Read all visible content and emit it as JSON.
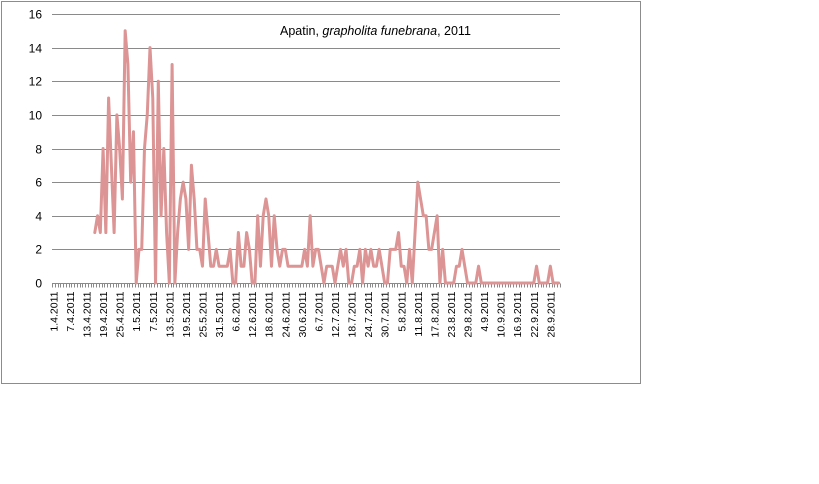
{
  "chart_data": {
    "type": "line",
    "title_prefix": "Apatin, ",
    "title_species": "grapholita funebrana",
    "title_suffix": ", 2011",
    "xlabel": "",
    "ylabel": "",
    "ylim": [
      0,
      16
    ],
    "yticks": [
      0,
      2,
      4,
      6,
      8,
      10,
      12,
      14,
      16
    ],
    "grid": "horizontal",
    "legend": "none",
    "line_color": "#dc9494",
    "tick_labels": [
      "1.4.2011",
      "7.4.2011",
      "13.4.2011",
      "19.4.2011",
      "25.4.2011",
      "1.5.2011",
      "7.5.2011",
      "13.5.2011",
      "19.5.2011",
      "25.5.2011",
      "31.5.2011",
      "6.6.2011",
      "12.6.2011",
      "18.6.2011",
      "24.6.2011",
      "30.6.2011",
      "6.7.2011",
      "12.7.2011",
      "18.7.2011",
      "24.7.2011",
      "30.7.2011",
      "5.8.2011",
      "11.8.2011",
      "17.8.2011",
      "23.8.2011",
      "29.8.2011",
      "4.9.2011",
      "10.9.2011",
      "16.9.2011",
      "22.9.2011",
      "28.9.2011"
    ],
    "days_count": 184,
    "series": [
      {
        "x": [
          15,
          16,
          17,
          18,
          19,
          20,
          21,
          22,
          23,
          24,
          25,
          26,
          27,
          28,
          29,
          30,
          31,
          32,
          33,
          34,
          35,
          36,
          37,
          38,
          39,
          40,
          41,
          42,
          43,
          44,
          45,
          46,
          47,
          48,
          49,
          50,
          51,
          52,
          53,
          54,
          55,
          56,
          57,
          58,
          59,
          60,
          61,
          62,
          63,
          64,
          65,
          66,
          67,
          68,
          69,
          70,
          71,
          72,
          73,
          74,
          75,
          76,
          77,
          78,
          79,
          80,
          81,
          82,
          83,
          84,
          85,
          86,
          87,
          88,
          89,
          90,
          91,
          92,
          93,
          94,
          95,
          96,
          97,
          98,
          99,
          100,
          101,
          102,
          103,
          104,
          105,
          106,
          107,
          108,
          109,
          110,
          111,
          112,
          113,
          114,
          115,
          116,
          117,
          118,
          119,
          120,
          121,
          122,
          123,
          124,
          125,
          126,
          127,
          128,
          129,
          130,
          131,
          132,
          133,
          134,
          135,
          136,
          137,
          138,
          139,
          140,
          141,
          142,
          143,
          144,
          145,
          146,
          147,
          148,
          149,
          150,
          151,
          152,
          153,
          154,
          155,
          156,
          157,
          158,
          159,
          160,
          161,
          162,
          163,
          164,
          165,
          166,
          167,
          168,
          169,
          170,
          171,
          172,
          173,
          174,
          175,
          176,
          177,
          178,
          179,
          180,
          181,
          182,
          183
        ],
        "y": [
          3,
          4,
          3,
          8,
          3,
          11,
          7,
          3,
          10,
          8,
          5,
          15,
          13,
          6,
          9,
          0,
          2,
          2,
          8,
          10,
          14,
          11,
          0,
          12,
          4,
          8,
          3,
          0,
          13,
          0,
          3,
          5,
          6,
          5,
          2,
          7,
          5,
          2,
          2,
          1,
          5,
          3,
          1,
          1,
          2,
          1,
          1,
          1,
          1,
          2,
          0,
          0,
          3,
          1,
          1,
          3,
          2,
          0,
          0,
          4,
          1,
          4,
          5,
          4,
          1,
          4,
          2,
          1,
          2,
          2,
          1,
          1,
          1,
          1,
          1,
          1,
          2,
          1,
          4,
          1,
          2,
          2,
          1,
          0,
          1,
          1,
          1,
          0,
          1,
          2,
          1,
          2,
          0,
          0,
          1,
          1,
          2,
          0,
          2,
          1,
          2,
          1,
          1,
          2,
          1,
          0,
          0,
          2,
          2,
          2,
          3,
          1,
          1,
          0,
          2,
          0,
          3,
          6,
          5,
          4,
          4,
          2,
          2,
          3,
          4,
          0,
          2,
          0,
          0,
          0,
          0,
          1,
          1,
          2,
          1,
          0,
          0,
          0,
          0,
          1,
          0,
          0,
          0,
          0,
          0,
          0,
          0,
          0,
          0,
          0,
          0,
          0,
          0,
          0,
          0,
          0,
          0,
          0,
          0,
          0,
          1,
          0,
          0,
          0,
          0,
          1,
          0,
          0,
          0
        ]
      }
    ]
  }
}
